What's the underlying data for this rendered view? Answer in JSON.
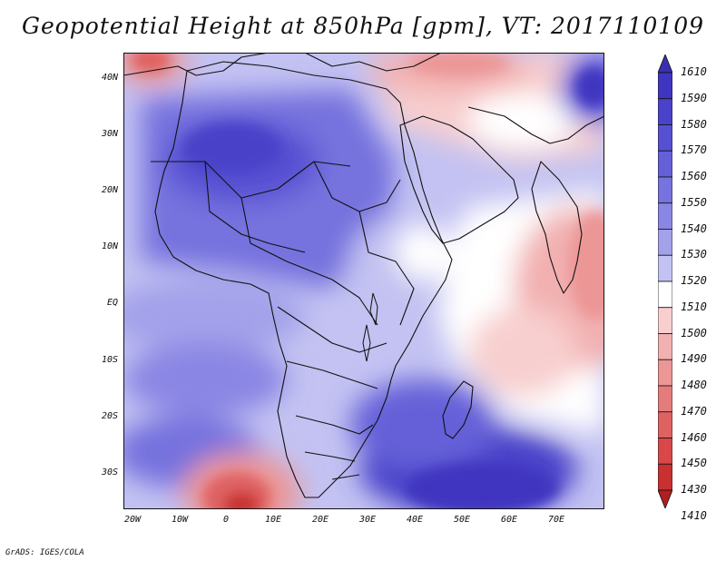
{
  "title": "Geopotential Height at 850hPa [gpm], VT: 2017110109",
  "footer": "GrADS: IGES/COLA",
  "lat_labels": [
    "40N",
    "30N",
    "20N",
    "10N",
    "EQ",
    "10S",
    "20S",
    "30S"
  ],
  "lon_labels": [
    "20W",
    "10W",
    "0",
    "10E",
    "20E",
    "30E",
    "40E",
    "50E",
    "60E",
    "70E"
  ],
  "colorbar": {
    "levels": [
      "1610",
      "1590",
      "1580",
      "1570",
      "1560",
      "1550",
      "1540",
      "1530",
      "1520",
      "1510",
      "1500",
      "1490",
      "1480",
      "1470",
      "1460",
      "1450",
      "1430",
      "1410"
    ],
    "colors": [
      "#3a2fb0",
      "#3f35c0",
      "#4a42c9",
      "#5650d2",
      "#6560d8",
      "#7672de",
      "#8a86e4",
      "#a3a1ea",
      "#c3c2f2",
      "#ffffff",
      "#f8cfcf",
      "#f2b0b0",
      "#ec9696",
      "#e57c7c",
      "#df6262",
      "#d84848",
      "#c93030",
      "#b21f1f"
    ]
  }
}
